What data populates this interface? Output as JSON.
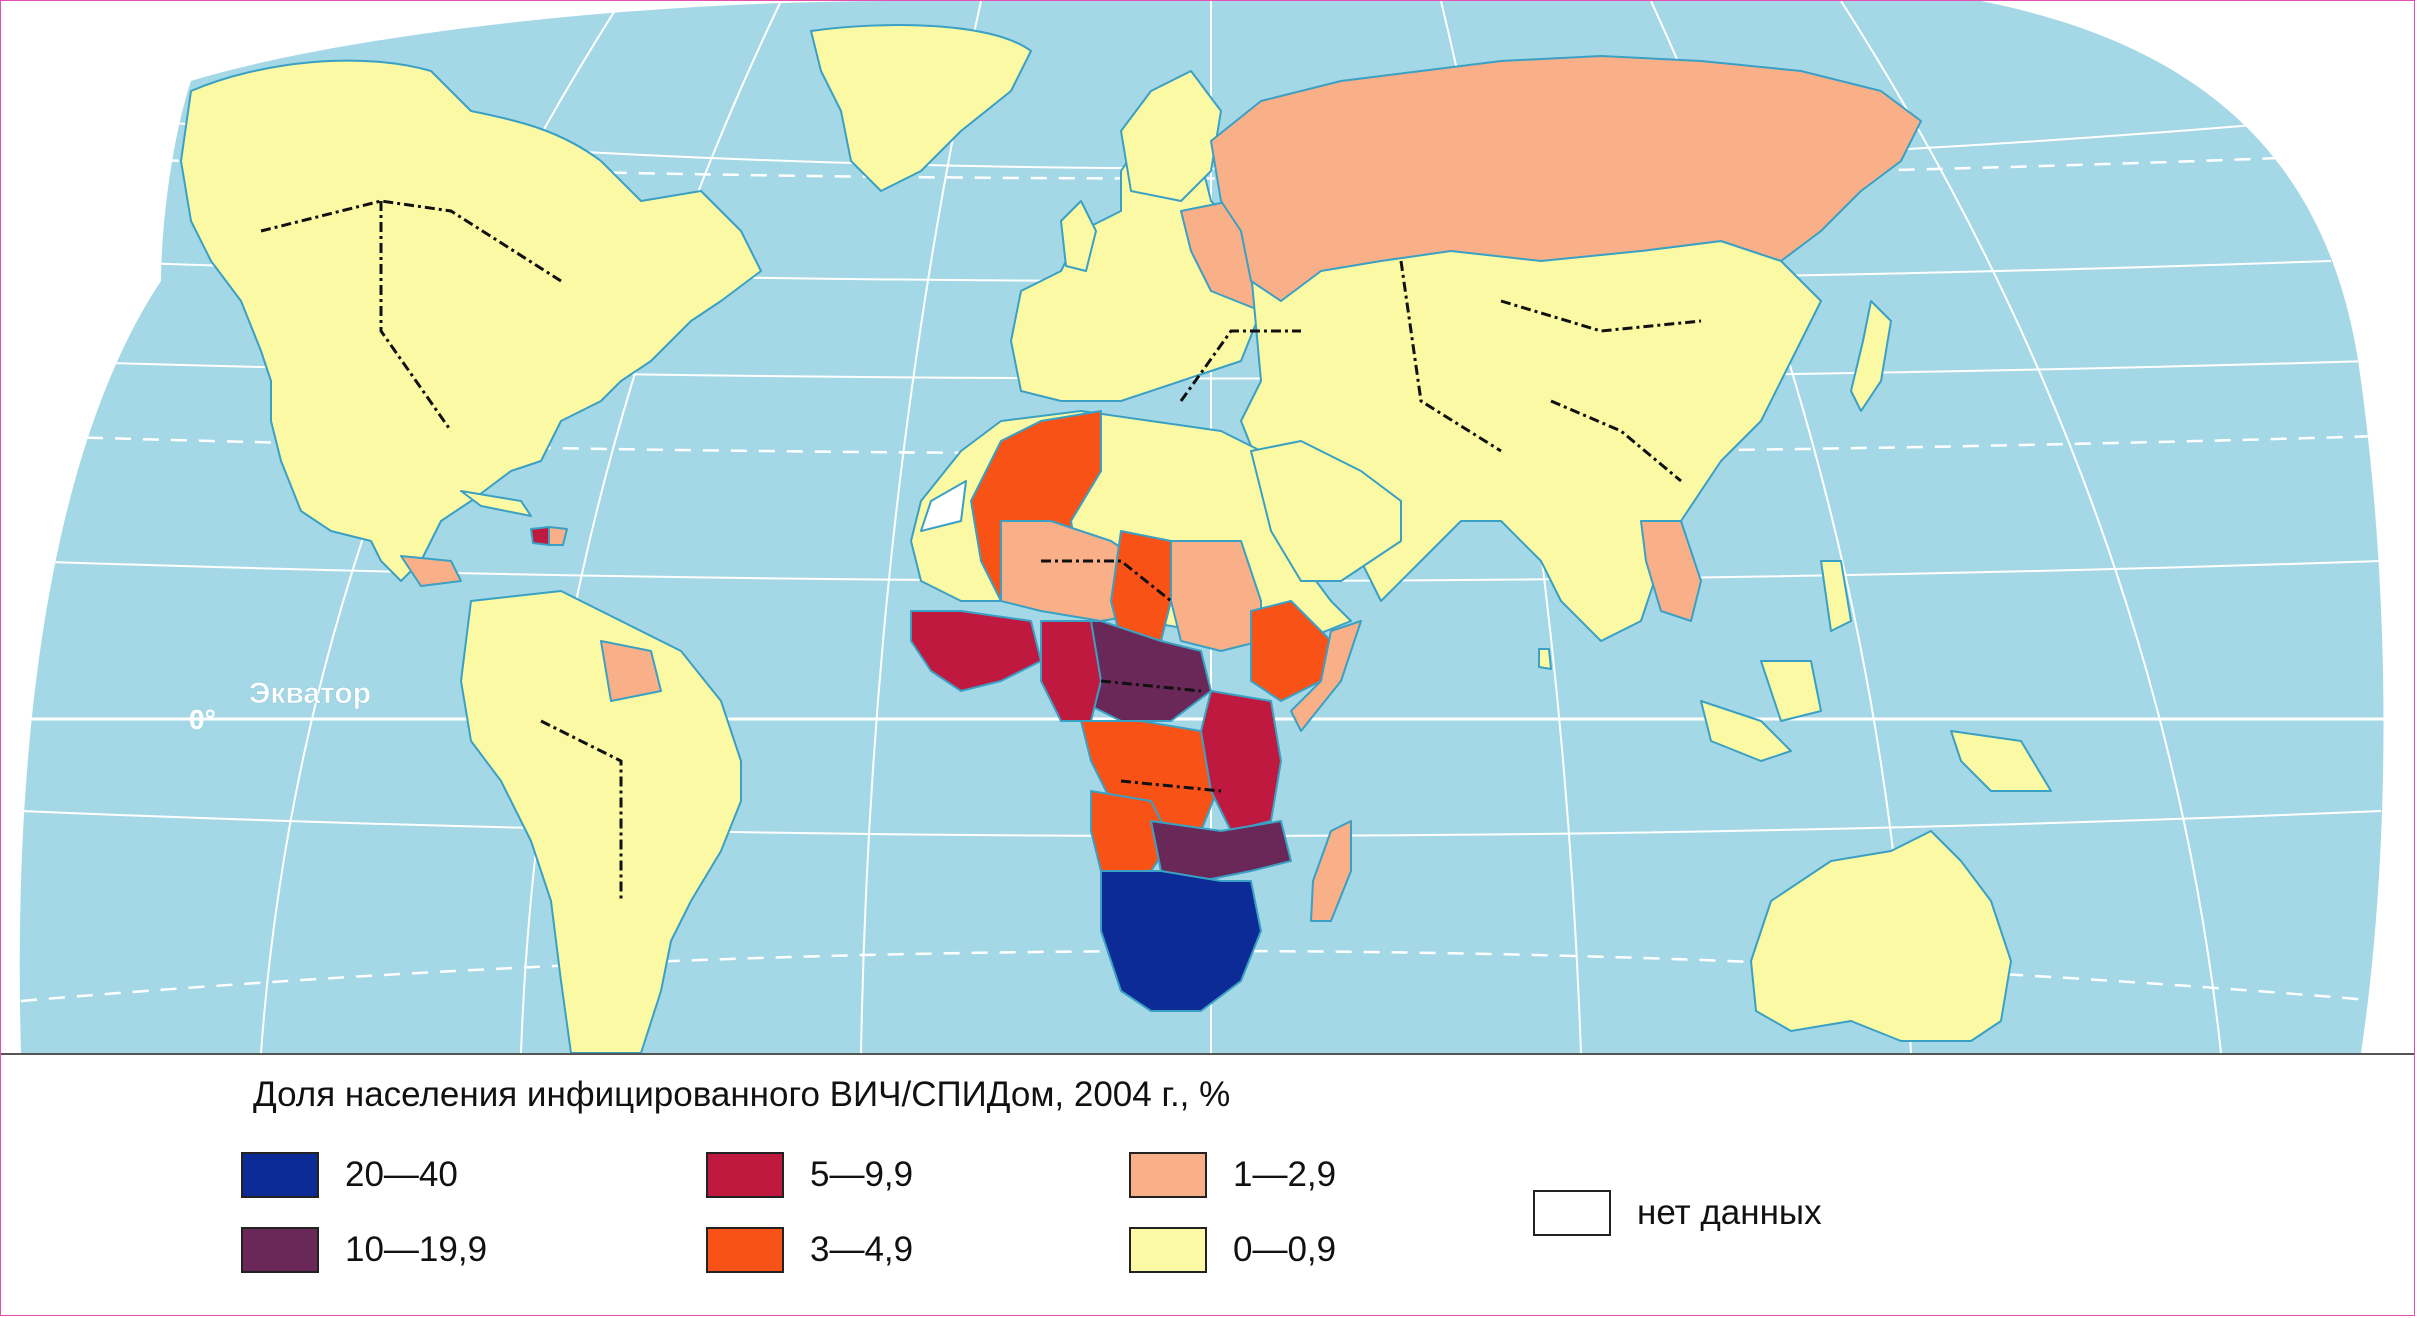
{
  "map": {
    "equator_label": "Экватор",
    "meridian_label": "0°",
    "ocean_color": "#a5d8e6"
  },
  "legend": {
    "title": "Доля населения инфицированного ВИЧ/СПИДом, 2004 г., %",
    "items": [
      {
        "label": "20—40",
        "color": "#0d2b96"
      },
      {
        "label": "10—19,9",
        "color": "#6a2858"
      },
      {
        "label": "5—9,9",
        "color": "#c0193f"
      },
      {
        "label": "3—4,9",
        "color": "#f85216"
      },
      {
        "label": "1—2,9",
        "color": "#f9b088"
      },
      {
        "label": "0—0,9",
        "color": "#fbf9a4"
      },
      {
        "label": "нет данных",
        "color": "#ffffff"
      }
    ]
  }
}
